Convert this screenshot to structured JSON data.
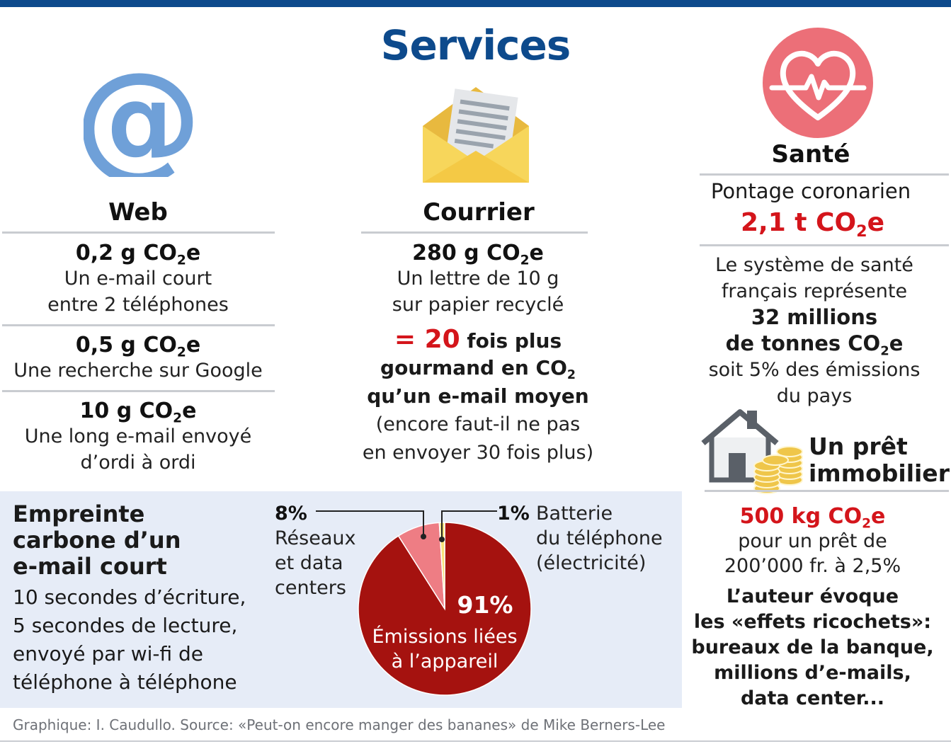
{
  "title": "Services",
  "web": {
    "heading": "Web",
    "items": [
      {
        "value": "0,2 g CO",
        "sub": "2",
        "unit": "e",
        "lines": [
          "Un e-mail court",
          "entre 2 téléphones"
        ]
      },
      {
        "value": "0,5 g CO",
        "sub": "2",
        "unit": "e",
        "lines": [
          "Une recherche sur Google"
        ]
      },
      {
        "value": "10 g CO",
        "sub": "2",
        "unit": "e",
        "lines": [
          "Une long e-mail envoyé",
          "d’ordi à ordi"
        ]
      }
    ]
  },
  "courrier": {
    "heading": "Courrier",
    "value": "280 g CO",
    "sub": "2",
    "unit": "e",
    "lines": [
      "Un lettre de 10 g",
      "sur papier recyclé"
    ],
    "compare_prefix": "= 20",
    "compare_suffix": " fois plus",
    "bold2": "gourmand en CO",
    "bold2_sub": "2",
    "bold3": "qu’un e-mail moyen",
    "note1": "(encore faut-il ne pas",
    "note2": "en envoyer 30 fois plus)"
  },
  "sante": {
    "heading": "Santé",
    "subheading": "Pontage coronarien",
    "value": "2,1 t CO",
    "sub": "2",
    "unit": "e",
    "lines": [
      "Le système de santé",
      "français représente"
    ],
    "bold1": "32 millions",
    "bold2": "de tonnes CO",
    "bold2_sub": "2",
    "bold2_unit": "e",
    "lines2": [
      "soit 5% des émissions",
      "du pays"
    ]
  },
  "pret": {
    "heading1": "Un prêt",
    "heading2": "immobilier",
    "value": "500 kg CO",
    "sub": "2",
    "unit": "e",
    "lines": [
      "pour un prêt de",
      "200’000 fr. à 2,5%"
    ],
    "bold_lines": [
      "L’auteur évoque",
      "les «effets ricochets»:",
      "bureaux de la banque,",
      "millions d’e-mails,",
      "data center..."
    ]
  },
  "empreinte": {
    "heading": [
      "Empreinte",
      "carbone d’un",
      "e-mail court"
    ],
    "lines": [
      "10 secondes d’écriture,",
      "5 secondes de lecture,",
      "envoyé par wi-fi de",
      "téléphone à téléphone"
    ]
  },
  "chart_data": {
    "type": "pie",
    "title": "Empreinte carbone d’un e-mail court",
    "slices": [
      {
        "label": "Émissions liées à l’appareil",
        "percent": 91,
        "color": "#a5120f"
      },
      {
        "label": "Réseaux et data centers",
        "percent": 8,
        "color": "#ee7d84"
      },
      {
        "label": "Batterie du téléphone (électricité)",
        "percent": 1,
        "color": "#f7e27a"
      }
    ],
    "labels": {
      "big_pct": "91%",
      "big_l1": "Émissions liées",
      "big_l2": "à l’appareil",
      "net_pct": "8%",
      "net_l1": "Réseaux",
      "net_l2": "et data",
      "net_l3": "centers",
      "bat_pct": "1%",
      "bat_l1": "Batterie",
      "bat_l2": "du téléphone",
      "bat_l3": "(électricité)"
    }
  },
  "source": "Graphique: I. Caudullo. Source: «Peut-on encore manger des bananes» de Mike Berners-Lee",
  "colors": {
    "brand_blue": "#0d4a8c",
    "accent_red": "#d4151b",
    "icon_blue": "#6fa0d8",
    "heart_pink": "#ec6f78",
    "panel_bg": "#e6ecf7"
  }
}
